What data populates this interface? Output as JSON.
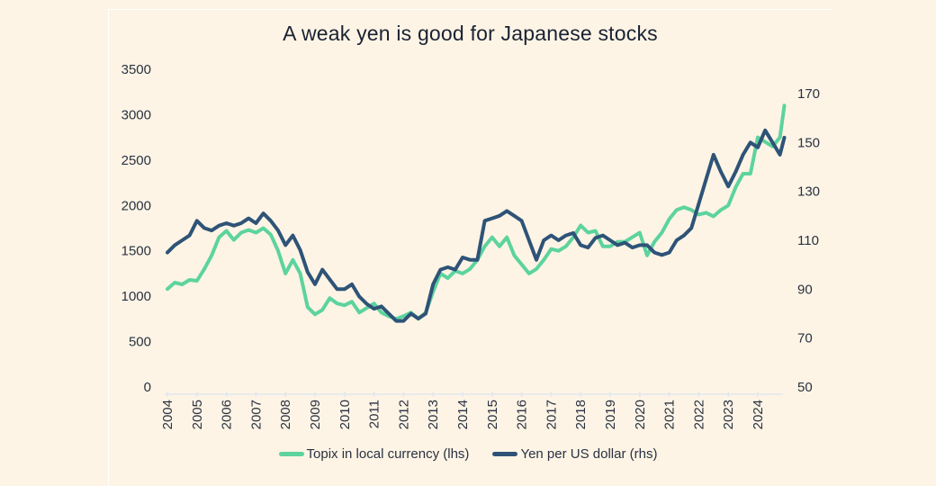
{
  "chart_data": {
    "type": "line",
    "title": "A weak yen is good for Japanese stocks",
    "xlabel": "",
    "ylabel_left": "",
    "ylabel_right": "",
    "x_ticks": [
      "2004",
      "2005",
      "2006",
      "2007",
      "2008",
      "2009",
      "2010",
      "2011",
      "2012",
      "2013",
      "2014",
      "2015",
      "2016",
      "2017",
      "2018",
      "2019",
      "2020",
      "2021",
      "2022",
      "2023",
      "2024"
    ],
    "x_range": [
      2004,
      2024.9
    ],
    "y_left": {
      "range": [
        0,
        3500
      ],
      "ticks": [
        "0",
        "500",
        "1000",
        "1500",
        "2000",
        "2500",
        "3000",
        "3500"
      ]
    },
    "y_right": {
      "range": [
        50,
        170
      ],
      "ticks": [
        "50",
        "70",
        "90",
        "110",
        "130",
        "150",
        "170"
      ]
    },
    "grid": false,
    "legend_position": "bottom",
    "series": [
      {
        "name": "Topix in local currency (lhs)",
        "axis": "left",
        "color": "#5dd39e",
        "x": [
          2004.0,
          2004.25,
          2004.5,
          2004.75,
          2005.0,
          2005.25,
          2005.5,
          2005.75,
          2006.0,
          2006.25,
          2006.5,
          2006.75,
          2007.0,
          2007.25,
          2007.5,
          2007.75,
          2008.0,
          2008.25,
          2008.5,
          2008.75,
          2009.0,
          2009.25,
          2009.5,
          2009.75,
          2010.0,
          2010.25,
          2010.5,
          2010.75,
          2011.0,
          2011.25,
          2011.5,
          2011.75,
          2012.0,
          2012.25,
          2012.5,
          2012.75,
          2013.0,
          2013.25,
          2013.5,
          2013.75,
          2014.0,
          2014.25,
          2014.5,
          2014.75,
          2015.0,
          2015.25,
          2015.5,
          2015.75,
          2016.0,
          2016.25,
          2016.5,
          2016.75,
          2017.0,
          2017.25,
          2017.5,
          2017.75,
          2018.0,
          2018.25,
          2018.5,
          2018.75,
          2019.0,
          2019.25,
          2019.5,
          2019.75,
          2020.0,
          2020.25,
          2020.5,
          2020.75,
          2021.0,
          2021.25,
          2021.5,
          2021.75,
          2022.0,
          2022.25,
          2022.5,
          2022.75,
          2023.0,
          2023.25,
          2023.5,
          2023.75,
          2024.0,
          2024.25,
          2024.5,
          2024.75,
          2024.9
        ],
        "values": [
          1080,
          1150,
          1130,
          1180,
          1170,
          1300,
          1450,
          1650,
          1720,
          1620,
          1700,
          1730,
          1700,
          1750,
          1680,
          1500,
          1250,
          1400,
          1250,
          880,
          800,
          850,
          980,
          920,
          900,
          940,
          820,
          870,
          920,
          820,
          780,
          750,
          780,
          820,
          750,
          820,
          1050,
          1250,
          1200,
          1280,
          1250,
          1300,
          1400,
          1550,
          1650,
          1550,
          1650,
          1450,
          1350,
          1250,
          1300,
          1400,
          1520,
          1500,
          1550,
          1650,
          1780,
          1700,
          1720,
          1550,
          1550,
          1600,
          1600,
          1650,
          1700,
          1450,
          1600,
          1700,
          1850,
          1950,
          1980,
          1950,
          1900,
          1920,
          1880,
          1950,
          2000,
          2200,
          2350,
          2350,
          2750,
          2700,
          2650,
          2750,
          3100
        ]
      },
      {
        "name": "Yen per US dollar (rhs)",
        "axis": "right",
        "color": "#2e5377",
        "x": [
          2004.0,
          2004.25,
          2004.5,
          2004.75,
          2005.0,
          2005.25,
          2005.5,
          2005.75,
          2006.0,
          2006.25,
          2006.5,
          2006.75,
          2007.0,
          2007.25,
          2007.5,
          2007.75,
          2008.0,
          2008.25,
          2008.5,
          2008.75,
          2009.0,
          2009.25,
          2009.5,
          2009.75,
          2010.0,
          2010.25,
          2010.5,
          2010.75,
          2011.0,
          2011.25,
          2011.5,
          2011.75,
          2012.0,
          2012.25,
          2012.5,
          2012.75,
          2013.0,
          2013.25,
          2013.5,
          2013.75,
          2014.0,
          2014.25,
          2014.5,
          2014.75,
          2015.0,
          2015.25,
          2015.5,
          2015.75,
          2016.0,
          2016.25,
          2016.5,
          2016.75,
          2017.0,
          2017.25,
          2017.5,
          2017.75,
          2018.0,
          2018.25,
          2018.5,
          2018.75,
          2019.0,
          2019.25,
          2019.5,
          2019.75,
          2020.0,
          2020.25,
          2020.5,
          2020.75,
          2021.0,
          2021.25,
          2021.5,
          2021.75,
          2022.0,
          2022.25,
          2022.5,
          2022.75,
          2023.0,
          2023.25,
          2023.5,
          2023.75,
          2024.0,
          2024.25,
          2024.5,
          2024.75,
          2024.9
        ],
        "values": [
          105,
          108,
          110,
          112,
          118,
          115,
          114,
          116,
          117,
          116,
          117,
          119,
          117,
          121,
          118,
          114,
          108,
          112,
          106,
          97,
          92,
          98,
          94,
          90,
          90,
          92,
          87,
          84,
          82,
          83,
          80,
          77,
          77,
          80,
          78,
          80,
          92,
          98,
          99,
          98,
          103,
          102,
          102,
          118,
          119,
          120,
          122,
          120,
          118,
          110,
          102,
          110,
          112,
          110,
          112,
          113,
          108,
          107,
          111,
          112,
          110,
          108,
          109,
          107,
          108,
          108,
          105,
          104,
          105,
          110,
          112,
          115,
          125,
          135,
          145,
          138,
          132,
          138,
          145,
          150,
          148,
          155,
          150,
          145,
          152
        ]
      }
    ]
  }
}
